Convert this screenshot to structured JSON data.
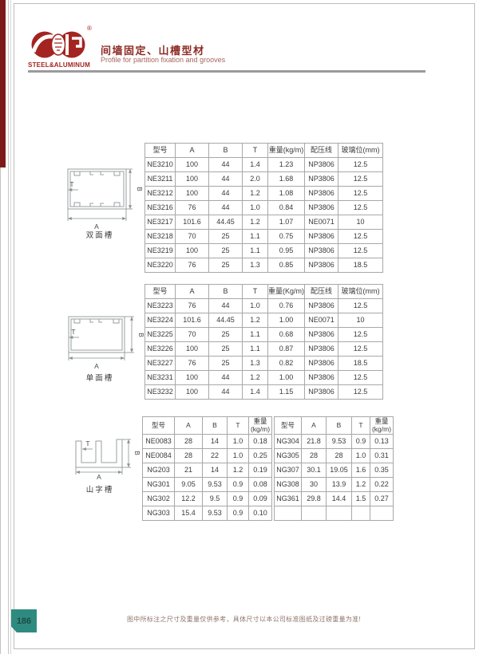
{
  "header": {
    "logo_text": "STEEL&ALUMINUM",
    "registered_mark": "®",
    "title_cn": "间墙固定、山槽型材",
    "title_en": "Profile for partition fixation and grooves"
  },
  "colors": {
    "brand_red": "#a32421",
    "stripe_maroon": "#7c1b1a",
    "page_tab_teal": "#2f8b80",
    "table_border": "#a8a8a8"
  },
  "drawings": [
    {
      "caption": "双面槽",
      "labels": {
        "a": "A",
        "b": "B",
        "t": "T"
      }
    },
    {
      "caption": "单面槽",
      "labels": {
        "a": "A",
        "b": "B",
        "t": "T"
      }
    },
    {
      "caption": "山字槽",
      "labels": {
        "a": "A",
        "b": "B",
        "t": "T"
      }
    }
  ],
  "tables": [
    {
      "columns": [
        "型号",
        "A",
        "B",
        "T",
        "重量(kg/m)",
        "配压线",
        "玻璃位(mm)"
      ],
      "rows": [
        [
          "NE3210",
          "100",
          "44",
          "1.4",
          "1.23",
          "NP3806",
          "12.5"
        ],
        [
          "NE3211",
          "100",
          "44",
          "2.0",
          "1.68",
          "NP3806",
          "12.5"
        ],
        [
          "NE3212",
          "100",
          "44",
          "1.2",
          "1.08",
          "NP3806",
          "12.5"
        ],
        [
          "NE3216",
          "76",
          "44",
          "1.0",
          "0.84",
          "NP3806",
          "12.5"
        ],
        [
          "NE3217",
          "101.6",
          "44.45",
          "1.2",
          "1.07",
          "NE0071",
          "10"
        ],
        [
          "NE3218",
          "70",
          "25",
          "1.1",
          "0.75",
          "NP3806",
          "12.5"
        ],
        [
          "NE3219",
          "100",
          "25",
          "1.1",
          "0.95",
          "NP3806",
          "12.5"
        ],
        [
          "NE3220",
          "76",
          "25",
          "1.3",
          "0.85",
          "NP3806",
          "18.5"
        ]
      ]
    },
    {
      "columns": [
        "型号",
        "A",
        "B",
        "T",
        "重量(Kg/m)",
        "配压线",
        "玻璃位(mm)"
      ],
      "rows": [
        [
          "NE3223",
          "76",
          "44",
          "1.0",
          "0.76",
          "NP3806",
          "12.5"
        ],
        [
          "NE3224",
          "101.6",
          "44.45",
          "1.2",
          "1.00",
          "NE0071",
          "10"
        ],
        [
          "NE3225",
          "70",
          "25",
          "1.1",
          "0.68",
          "NP3806",
          "12.5"
        ],
        [
          "NE3226",
          "100",
          "25",
          "1.1",
          "0.87",
          "NP3806",
          "12.5"
        ],
        [
          "NE3227",
          "76",
          "25",
          "1.3",
          "0.82",
          "NP3806",
          "18.5"
        ],
        [
          "NE3231",
          "100",
          "44",
          "1.2",
          "1.00",
          "NP3806",
          "12.5"
        ],
        [
          "NE3232",
          "100",
          "44",
          "1.4",
          "1.15",
          "NP3806",
          "12.5"
        ]
      ]
    },
    {
      "columns": [
        "型号",
        "A",
        "B",
        "T",
        "重量\n(kg/m)"
      ],
      "rows": [
        [
          "NE0083",
          "28",
          "14",
          "1.0",
          "0.18"
        ],
        [
          "NE0084",
          "28",
          "22",
          "1.0",
          "0.25"
        ],
        [
          "NG203",
          "21",
          "14",
          "1.2",
          "0.19"
        ],
        [
          "NG301",
          "9.05",
          "9.53",
          "0.9",
          "0.08"
        ],
        [
          "NG302",
          "12.2",
          "9.5",
          "0.9",
          "0.09"
        ],
        [
          "NG303",
          "15.4",
          "9.53",
          "0.9",
          "0.10"
        ]
      ]
    },
    {
      "columns": [
        "型号",
        "A",
        "B",
        "T",
        "重量\n(kg/m)"
      ],
      "rows": [
        [
          "NG304",
          "21.8",
          "9.53",
          "0.9",
          "0.13"
        ],
        [
          "NG305",
          "28",
          "28",
          "1.0",
          "0.31"
        ],
        [
          "NG307",
          "30.1",
          "19.05",
          "1.6",
          "0.35"
        ],
        [
          "NG308",
          "30",
          "13.9",
          "1.2",
          "0.22"
        ],
        [
          "NG361",
          "29.8",
          "14.4",
          "1.5",
          "0.27"
        ],
        [
          "",
          "",
          "",
          "",
          ""
        ]
      ]
    }
  ],
  "footer": {
    "page_number": "186",
    "disclaimer": "图中所标注之尺寸及重量仅供参考，具体尺寸以本公司标准图纸及过磅重量为准!"
  }
}
